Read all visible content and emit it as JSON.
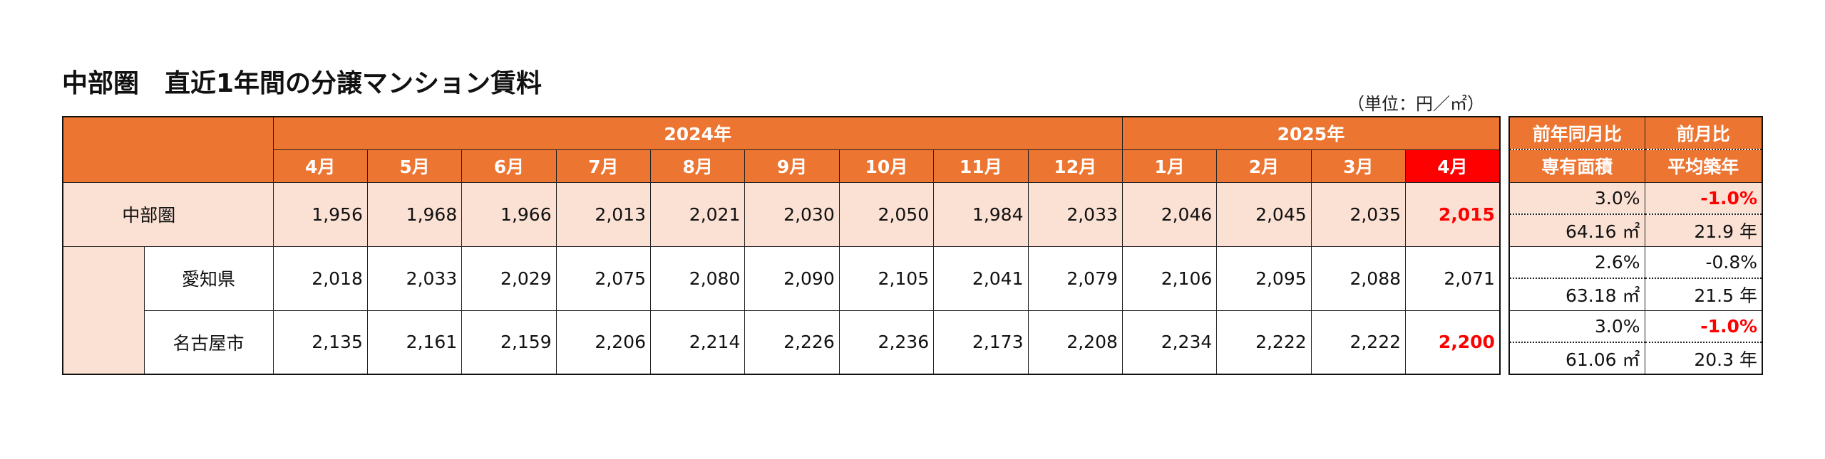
{
  "header": {
    "title": "中部圏　直近1年間の分譲マンション賃料",
    "unit": "（単位：円／㎡）"
  },
  "table": {
    "orange": "#ec7531",
    "peach": "#fbe1d4",
    "highlight_color": "#ff0000",
    "years": [
      {
        "label": "2024年",
        "months": [
          "4月",
          "5月",
          "6月",
          "7月",
          "8月",
          "9月",
          "10月",
          "11月",
          "12月"
        ]
      },
      {
        "label": "2025年",
        "months": [
          "1月",
          "2月",
          "3月",
          "4月"
        ]
      }
    ],
    "rows": [
      {
        "name": "中部圏",
        "emphasis": true,
        "values": [
          "1,956",
          "1,968",
          "1,966",
          "2,013",
          "2,021",
          "2,030",
          "2,050",
          "1,984",
          "2,033",
          "2,046",
          "2,045",
          "2,035",
          "2,015"
        ]
      },
      {
        "name": "愛知県",
        "emphasis": false,
        "values": [
          "2,018",
          "2,033",
          "2,029",
          "2,075",
          "2,080",
          "2,090",
          "2,105",
          "2,041",
          "2,079",
          "2,106",
          "2,095",
          "2,088",
          "2,071"
        ]
      },
      {
        "name": "名古屋市",
        "emphasis": true,
        "values": [
          "2,135",
          "2,161",
          "2,159",
          "2,206",
          "2,214",
          "2,226",
          "2,236",
          "2,173",
          "2,208",
          "2,234",
          "2,222",
          "2,222",
          "2,200"
        ]
      }
    ]
  },
  "side": {
    "headers": [
      [
        "前年同月比",
        "前月比"
      ],
      [
        "専有面積",
        "平均築年"
      ]
    ],
    "rows": [
      {
        "yoy": "3.0%",
        "mom": "-1.0%",
        "mom_emphasis": true,
        "area": "64.16 ㎡",
        "age": "21.9 年"
      },
      {
        "yoy": "2.6%",
        "mom": "-0.8%",
        "mom_emphasis": false,
        "area": "63.18 ㎡",
        "age": "21.5 年"
      },
      {
        "yoy": "3.0%",
        "mom": "-1.0%",
        "mom_emphasis": true,
        "area": "61.06 ㎡",
        "age": "20.3 年"
      }
    ]
  }
}
